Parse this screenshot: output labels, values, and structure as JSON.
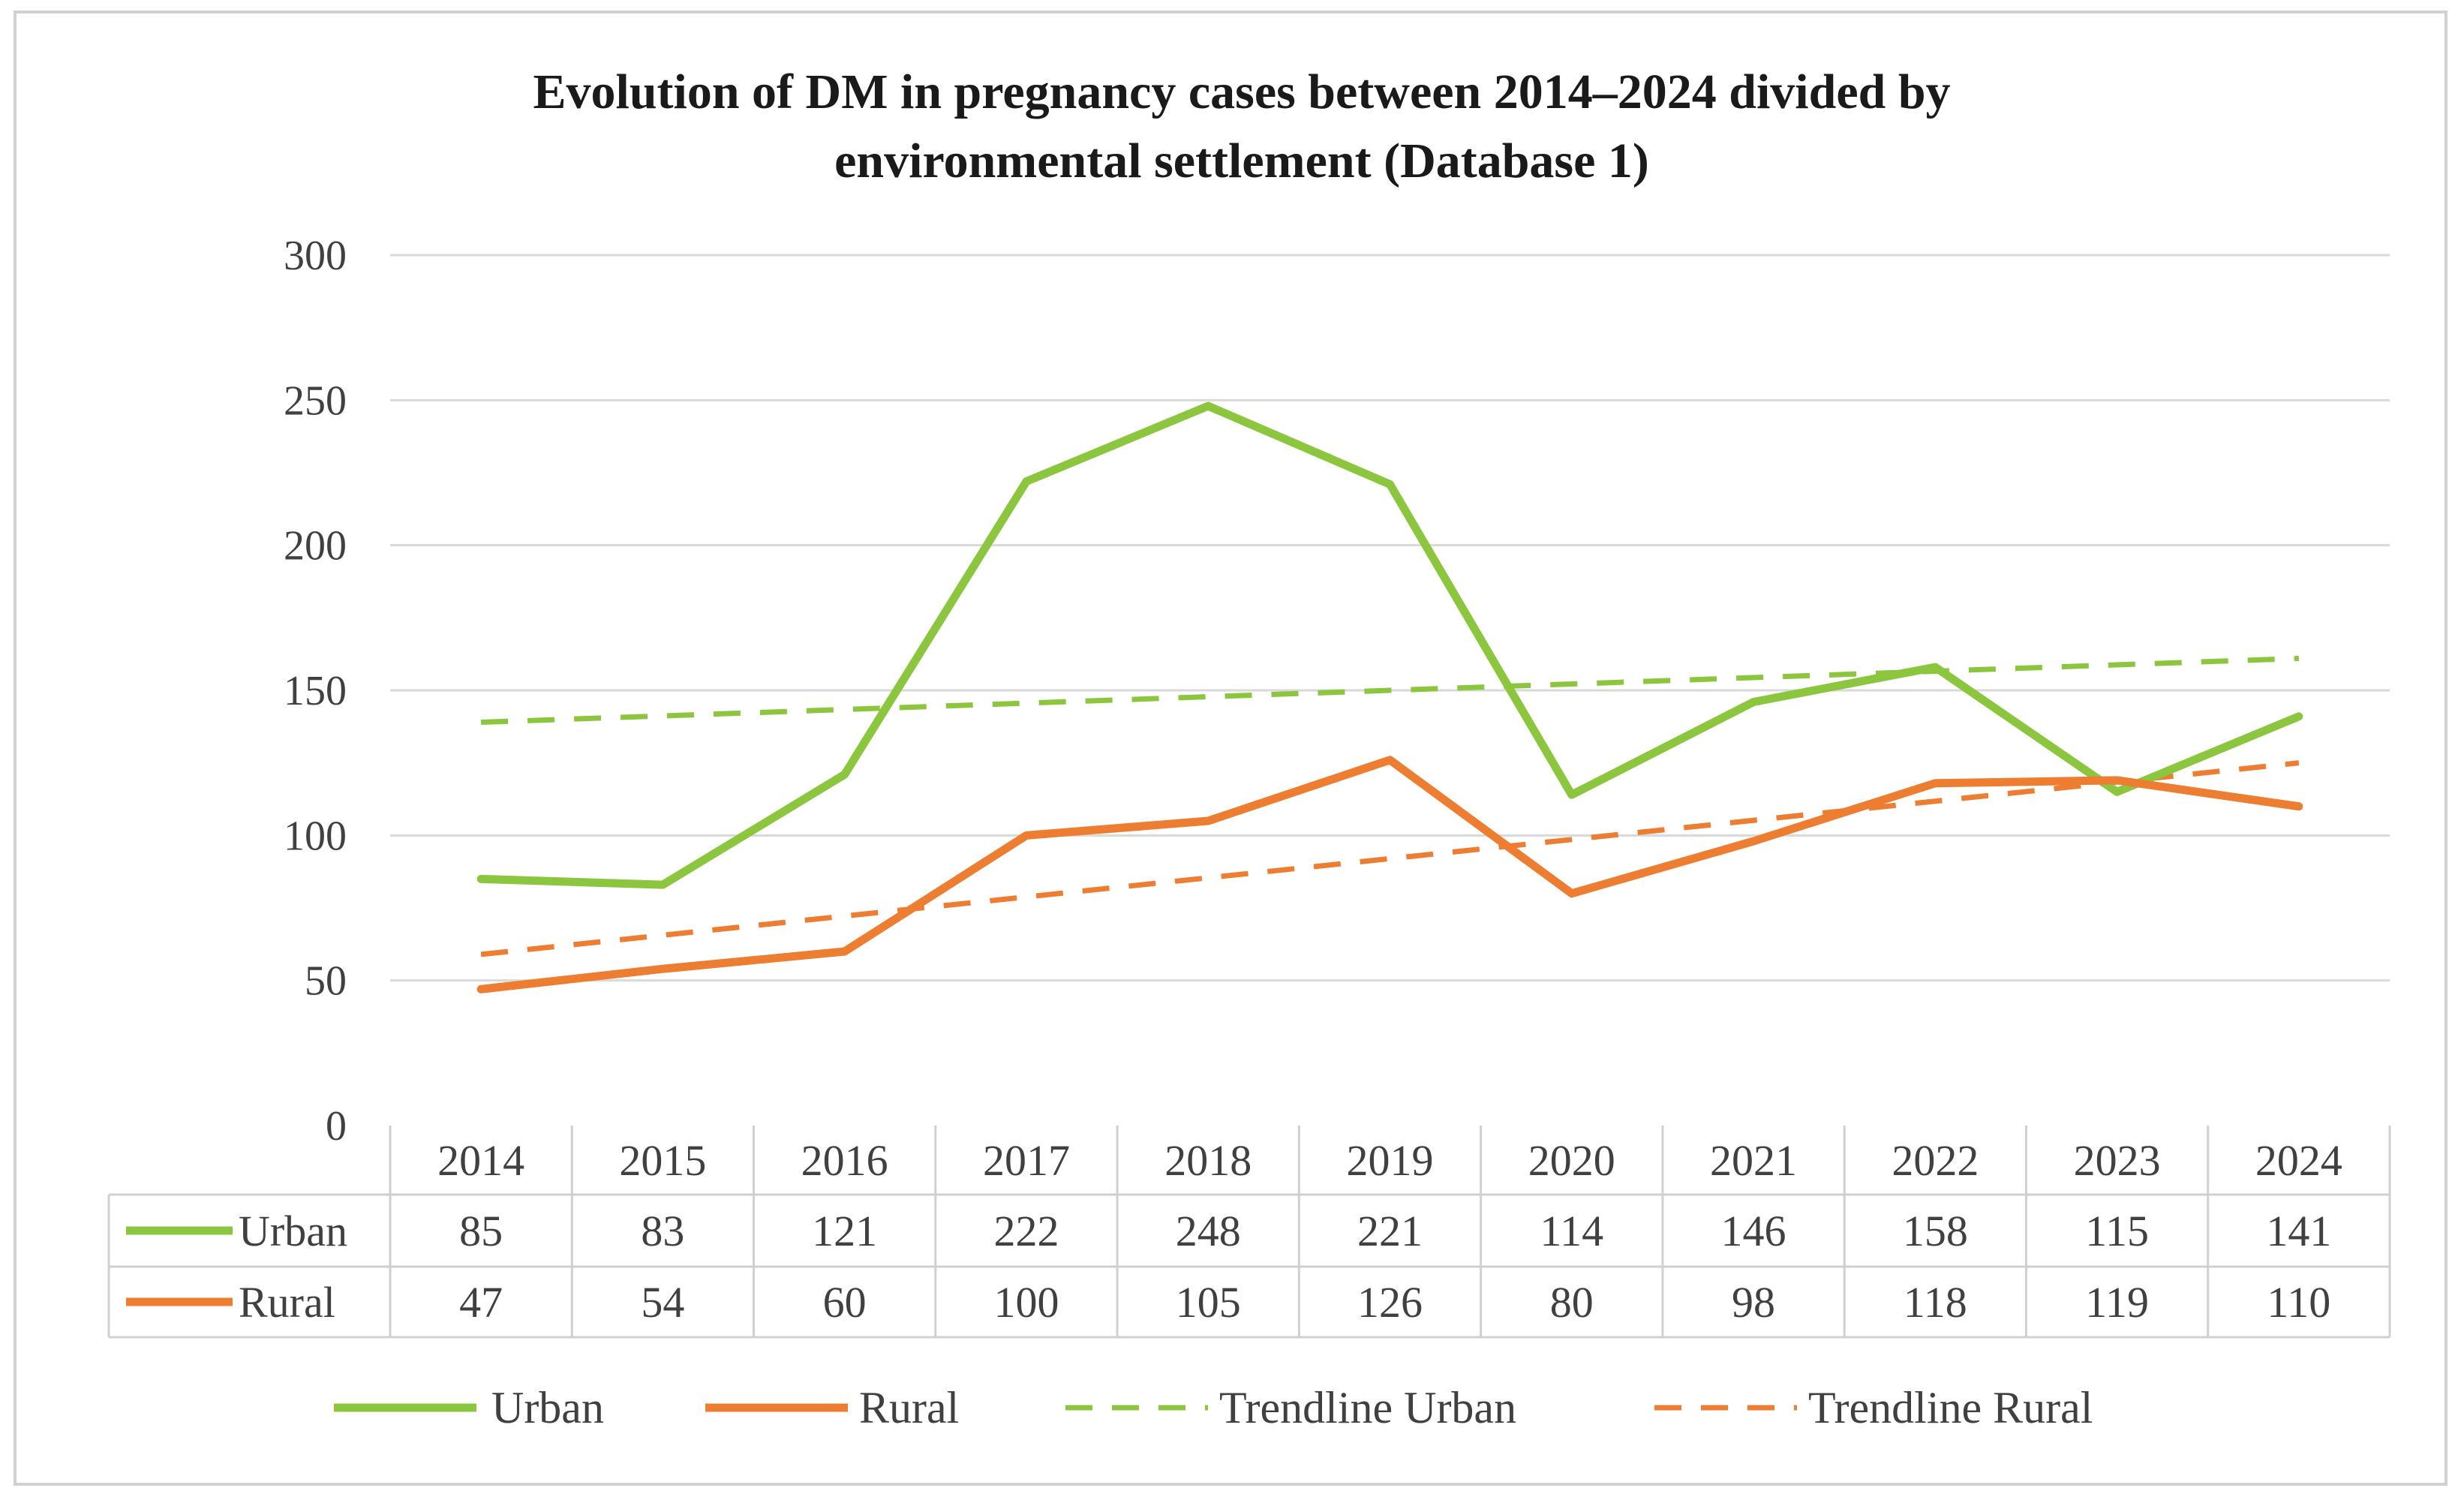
{
  "chart_data": {
    "type": "line",
    "title_lines": [
      "Evolution of DM in pregnancy cases between 2014–2024 divided by",
      "environmental settlement (Database 1)"
    ],
    "categories": [
      "2014",
      "2015",
      "2016",
      "2017",
      "2018",
      "2019",
      "2020",
      "2021",
      "2022",
      "2023",
      "2024"
    ],
    "series": [
      {
        "name": "Urban",
        "color": "#8cc63f",
        "values": [
          85,
          83,
          121,
          222,
          248,
          221,
          114,
          146,
          158,
          115,
          141
        ]
      },
      {
        "name": "Rural",
        "color": "#ed7d31",
        "values": [
          47,
          54,
          60,
          100,
          105,
          126,
          80,
          98,
          118,
          119,
          110
        ]
      }
    ],
    "trendlines": [
      {
        "name": "Trendline Urban",
        "color": "#8cc63f",
        "start": 139,
        "end": 161
      },
      {
        "name": "Trendline Rural",
        "color": "#ed7d31",
        "start": 59,
        "end": 125
      }
    ],
    "ylim": [
      0,
      300
    ],
    "yticks": [
      0,
      50,
      100,
      150,
      200,
      250,
      300
    ],
    "ytick_labels": [
      "0",
      "50",
      "100",
      "150",
      "200",
      "250",
      "300"
    ],
    "legend": [
      "Urban",
      "Rural",
      "Trendline Urban",
      "Trendline Rural"
    ],
    "legend_position": "bottom",
    "grid": true,
    "data_table": true
  }
}
